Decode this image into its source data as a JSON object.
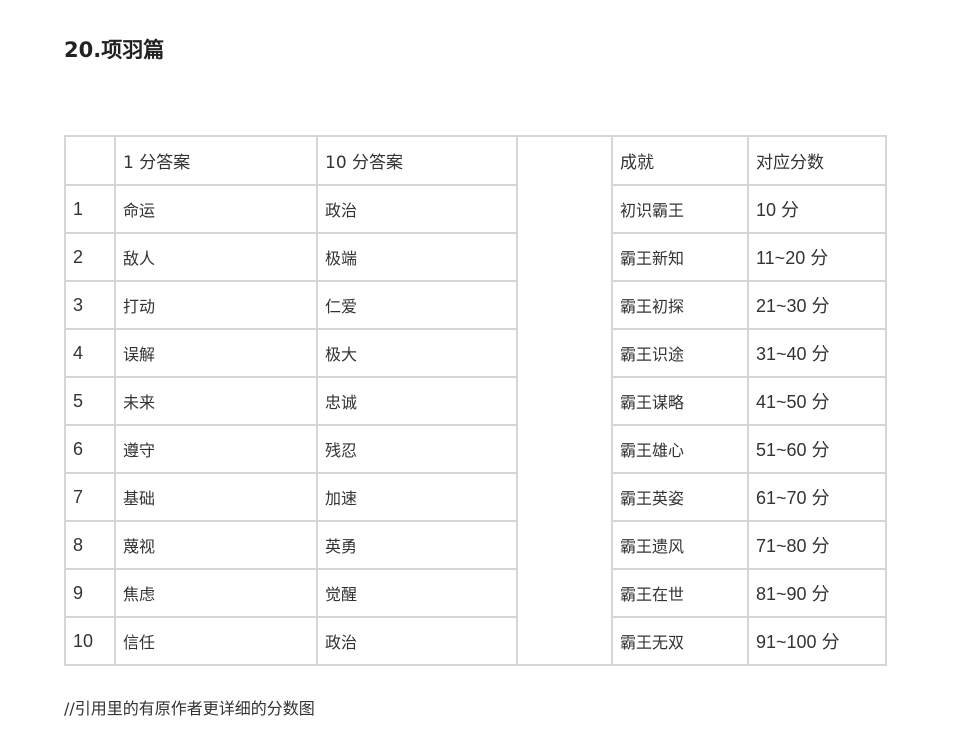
{
  "title": "20.项羽篇",
  "table": {
    "headers": [
      "",
      "1 分答案",
      "10 分答案",
      "",
      "成就",
      "对应分数"
    ],
    "rows": [
      {
        "n": "1",
        "a1": "命运",
        "a10": "政治",
        "ach": "初识霸王",
        "score": "10 分"
      },
      {
        "n": "2",
        "a1": "敌人",
        "a10": "极端",
        "ach": "霸王新知",
        "score": "11~20 分"
      },
      {
        "n": "3",
        "a1": "打动",
        "a10": "仁爱",
        "ach": "霸王初探",
        "score": "21~30 分"
      },
      {
        "n": "4",
        "a1": "误解",
        "a10": "极大",
        "ach": "霸王识途",
        "score": "31~40 分"
      },
      {
        "n": "5",
        "a1": "未来",
        "a10": "忠诚",
        "ach": "霸王谋略",
        "score": "41~50 分"
      },
      {
        "n": "6",
        "a1": "遵守",
        "a10": "残忍",
        "ach": "霸王雄心",
        "score": "51~60 分"
      },
      {
        "n": "7",
        "a1": "基础",
        "a10": "加速",
        "ach": "霸王英姿",
        "score": "61~70 分"
      },
      {
        "n": "8",
        "a1": "蔑视",
        "a10": "英勇",
        "ach": "霸王遗风",
        "score": "71~80 分"
      },
      {
        "n": "9",
        "a1": "焦虑",
        "a10": "觉醒",
        "ach": "霸王在世",
        "score": "81~90 分"
      },
      {
        "n": "10",
        "a1": "信任",
        "a10": "政治",
        "ach": "霸王无双",
        "score": "91~100 分"
      }
    ]
  },
  "footer": "//引用里的有原作者更详细的分数图"
}
